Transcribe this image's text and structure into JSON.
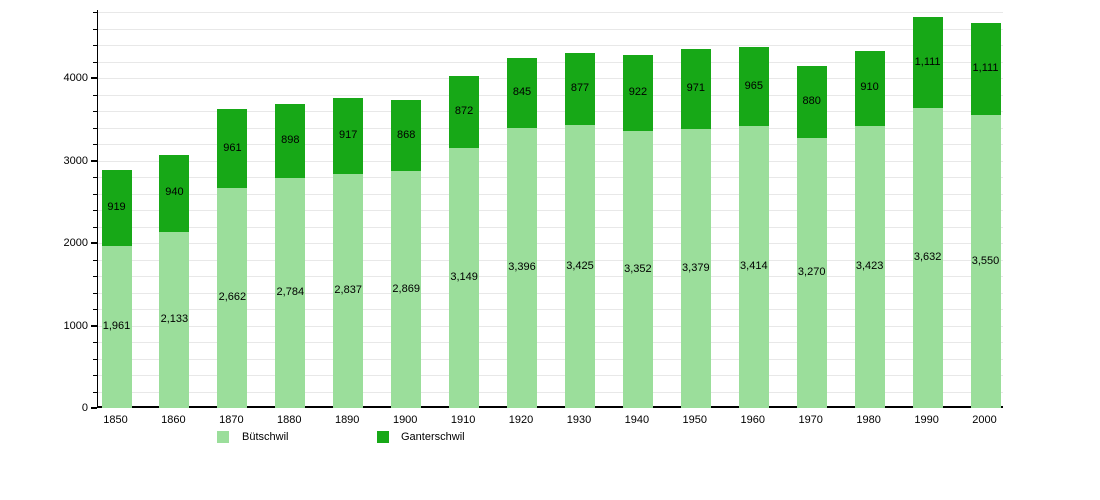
{
  "chart_data": {
    "type": "bar",
    "stacked": true,
    "title": "",
    "xlabel": "",
    "ylabel": "",
    "categories": [
      "1850",
      "1860",
      "1870",
      "1880",
      "1890",
      "1900",
      "1910",
      "1920",
      "1930",
      "1940",
      "1950",
      "1960",
      "1970",
      "1980",
      "1990",
      "2000"
    ],
    "series": [
      {
        "name": "Bütschwil",
        "color": "#9bde9b",
        "values": [
          1961,
          2133,
          2662,
          2784,
          2837,
          2869,
          3149,
          3396,
          3425,
          3352,
          3379,
          3414,
          3270,
          3423,
          3632,
          3550
        ]
      },
      {
        "name": "Ganterschwil",
        "color": "#17a817",
        "values": [
          919,
          940,
          961,
          898,
          917,
          868,
          872,
          845,
          877,
          922,
          971,
          965,
          880,
          910,
          1111,
          1111
        ]
      }
    ],
    "totals": [
      2880,
      3073,
      3623,
      3682,
      3754,
      3737,
      4021,
      4241,
      4302,
      4274,
      4350,
      4379,
      4150,
      4333,
      4743,
      4661
    ],
    "ylim": [
      0,
      4824
    ],
    "ytick_labels": [
      0,
      1000,
      2000,
      3000,
      4000
    ],
    "minor_grid_step": 200,
    "grid": true,
    "grid_color": "#e8e8e8",
    "axis_color": "#000000",
    "value_labels": "inside-segment-center, thousands comma format",
    "legend_position": "bottom"
  },
  "legend": {
    "items": [
      {
        "label": "Bütschwil",
        "color": "#9bde9b"
      },
      {
        "label": "Ganterschwil",
        "color": "#17a817"
      }
    ]
  }
}
